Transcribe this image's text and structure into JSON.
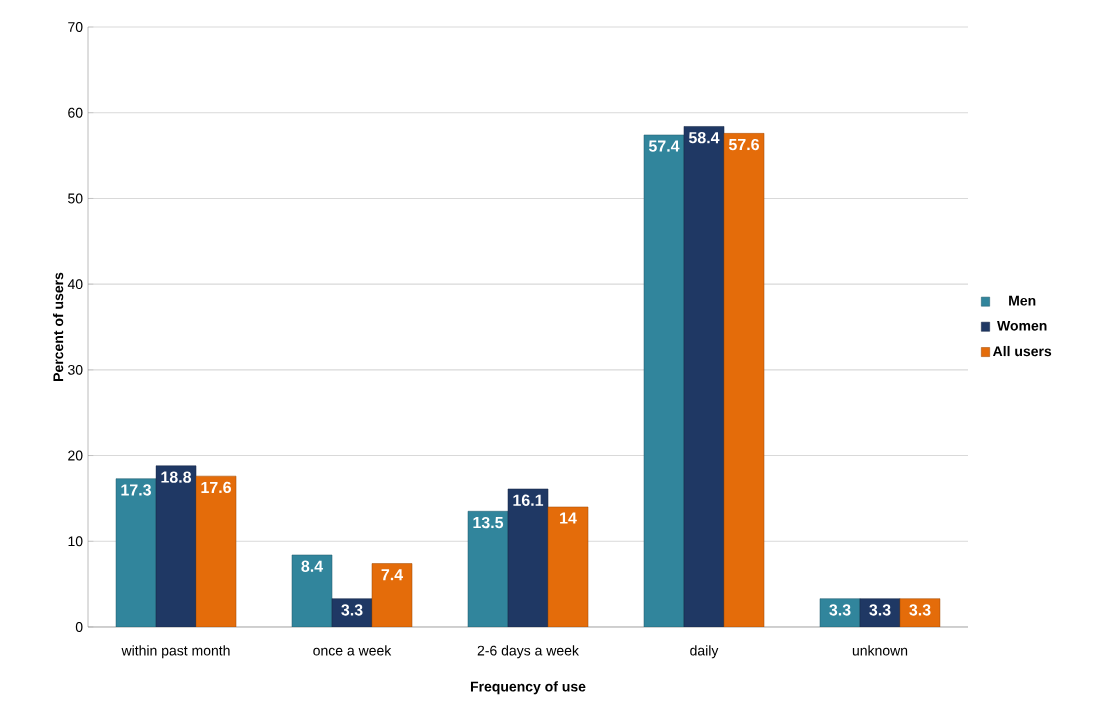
{
  "chart_data": {
    "type": "bar",
    "xlabel": "Frequency of use",
    "ylabel": "Percent of users",
    "categories": [
      "within past month",
      "once a week",
      "2-6 days a week",
      "daily",
      "unknown"
    ],
    "series": [
      {
        "name": "Men",
        "color": "#31859c",
        "values": [
          17.3,
          8.4,
          13.5,
          57.4,
          3.3
        ]
      },
      {
        "name": "Women",
        "color": "#1f3864",
        "values": [
          18.8,
          3.3,
          16.1,
          58.4,
          3.3
        ]
      },
      {
        "name": "All users",
        "color": "#e46c0a",
        "values": [
          17.6,
          7.4,
          14,
          57.6,
          3.3
        ]
      }
    ],
    "ylim": [
      0,
      70
    ],
    "yticks": [
      0,
      10,
      20,
      30,
      40,
      50,
      60,
      70
    ],
    "grid": "y",
    "legend": "right",
    "data_labels": true
  }
}
